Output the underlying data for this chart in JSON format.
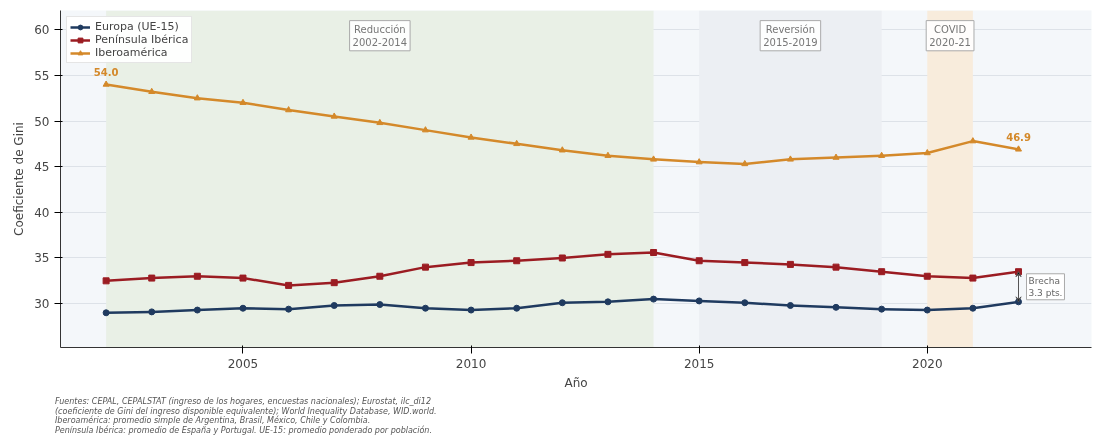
{
  "chart_data": {
    "type": "line",
    "xlabel": "Año",
    "ylabel": "Coeficiente de Gini",
    "x": [
      2002,
      2003,
      2004,
      2005,
      2006,
      2007,
      2008,
      2009,
      2010,
      2011,
      2012,
      2013,
      2014,
      2015,
      2016,
      2017,
      2018,
      2019,
      2020,
      2021,
      2022
    ],
    "series": [
      {
        "name": "Europa (UE-15)",
        "color": "#1f3a5f",
        "marker": "circle",
        "values": [
          29.0,
          29.1,
          29.3,
          29.5,
          29.4,
          29.8,
          29.9,
          29.5,
          29.3,
          29.5,
          30.1,
          30.2,
          30.5,
          30.3,
          30.1,
          29.8,
          29.6,
          29.4,
          29.3,
          29.5,
          30.2
        ]
      },
      {
        "name": "Península Ibérica",
        "color": "#9b1c22",
        "marker": "square",
        "values": [
          32.5,
          32.8,
          33.0,
          32.8,
          32.0,
          32.3,
          33.0,
          34.0,
          34.5,
          34.7,
          35.0,
          35.4,
          35.6,
          34.7,
          34.5,
          34.3,
          34.0,
          33.5,
          33.0,
          32.8,
          33.5
        ]
      },
      {
        "name": "Iberoamérica",
        "color": "#d4892a",
        "marker": "triangle",
        "values": [
          54.0,
          53.2,
          52.5,
          52.0,
          51.2,
          50.5,
          49.8,
          49.0,
          48.2,
          47.5,
          46.8,
          46.2,
          45.8,
          45.5,
          45.3,
          45.8,
          46.0,
          46.2,
          46.5,
          47.8,
          46.9
        ],
        "value_labels": [
          "54.0",
          null,
          null,
          null,
          null,
          null,
          null,
          null,
          null,
          null,
          null,
          null,
          null,
          null,
          null,
          null,
          null,
          null,
          null,
          null,
          "46.9"
        ]
      }
    ],
    "xlim": [
      2001.0,
      2023.6
    ],
    "xticks": [
      2005,
      2010,
      2015,
      2020
    ],
    "ylim": [
      25.2,
      62.1
    ],
    "yticks": [
      30,
      35,
      40,
      45,
      50,
      55,
      60
    ],
    "bands": [
      {
        "axis": "x",
        "from": 2002,
        "to": 2014,
        "label": "Reducción\n2002-2014",
        "color": "#e9f0e6"
      },
      {
        "axis": "x",
        "from": 2015,
        "to": 2019,
        "label": "Reversión\n2015-2019",
        "color": "#eceff3"
      },
      {
        "axis": "x",
        "from": 2020,
        "to": 2021,
        "label": "COVID\n2020-21",
        "color": "#f8ecdc"
      }
    ],
    "annotations": [
      {
        "text": "Brecha\n3.3 pts.",
        "x": 2022,
        "y": 33.5
      },
      "Fuentes: CEPAL, CEPALSTAT (ingreso de los hogares, encuestas nacionales); Eurostat, ilc_di12\n(coeficiente de Gini del ingreso disponible equivalente); World Inequality Database, WID.world.\nIberoamérica: promedio simple de Argentina, Brasil, México, Chile y Colombia.\nPenínsula Ibérica: promedio de España y Portugal. UE-15: promedio ponderado por población."
    ],
    "grid": "y",
    "legend": "top left",
    "line_style": "solid"
  }
}
